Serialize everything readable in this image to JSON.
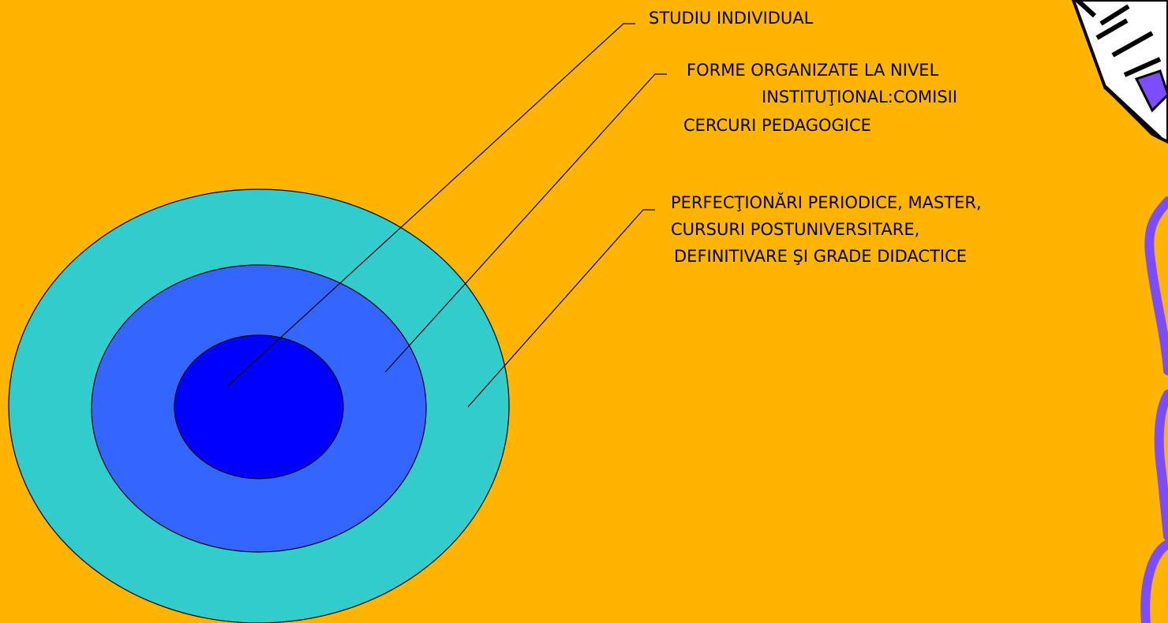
{
  "labels": [
    {
      "lines": [
        "STUDIU INDIVIDUAL"
      ]
    },
    {
      "lines": [
        "FORME ORGANIZATE LA NIVEL",
        "INSTITUŢIONAL:COMISII",
        "CERCURI PEDAGOGICE"
      ]
    },
    {
      "lines": [
        "PERFECŢIONĂRI PERIODICE, MASTER,",
        "CURSURI POSTUNIVERSITARE,",
        "DEFINITIVARE ŞI GRADE DIDACTICE"
      ]
    }
  ]
}
